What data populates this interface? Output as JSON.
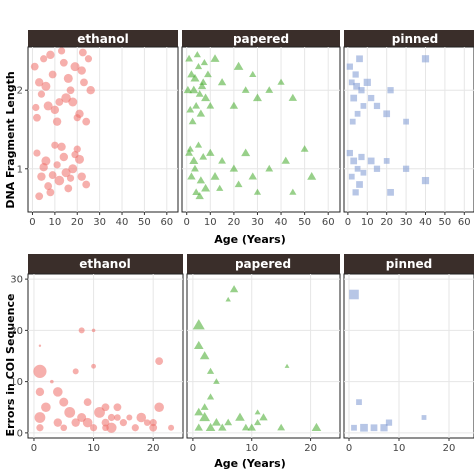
{
  "colors": {
    "strip_bg": "#3a2e2a",
    "panel_bg": "#ffffff",
    "panel_border": "#222222",
    "grid_major": "#e6e6e6",
    "ethanol": "#ee6e68",
    "papered": "#44a92a",
    "pinned": "#7b97d2"
  },
  "chart_data": [
    {
      "type": "scatter",
      "ylabel": "DNA Fragment Length",
      "xlabel": "Age (Years)",
      "facets": [
        "ethanol",
        "papered",
        "pinned"
      ],
      "facet_xlim": [
        [
          -2,
          65
        ],
        [
          -2,
          65
        ],
        [
          -2,
          65
        ]
      ],
      "facet_xticks": [
        [
          0,
          10,
          20,
          30,
          40,
          50,
          60
        ],
        [
          0,
          10,
          20,
          30,
          40,
          50,
          60
        ],
        [
          0,
          10,
          20,
          30,
          40,
          50,
          60
        ]
      ],
      "ylim": [
        0.45,
        2.55
      ],
      "yticks": [
        1,
        2
      ],
      "grid": true,
      "series": [
        {
          "facet": 0,
          "marker": "circle",
          "points": [
            [
              1,
              2.3,
              1.3
            ],
            [
              3,
              2.1,
              1.4
            ],
            [
              5,
              2.4,
              1.2
            ],
            [
              7,
              1.8,
              1.5
            ],
            [
              9,
              2.2,
              1.3
            ],
            [
              11,
              1.6,
              1.4
            ],
            [
              13,
              2.5,
              1.2
            ],
            [
              15,
              1.9,
              1.6
            ],
            [
              17,
              2.0,
              1.3
            ],
            [
              19,
              2.3,
              1.5
            ],
            [
              21,
              1.7,
              1.4
            ],
            [
              23,
              2.1,
              1.3
            ],
            [
              25,
              2.4,
              1.2
            ],
            [
              2,
              1.65,
              1.3
            ],
            [
              6,
              2.05,
              1.5
            ],
            [
              10,
              1.75,
              1.4
            ],
            [
              14,
              2.35,
              1.3
            ],
            [
              18,
              1.85,
              1.5
            ],
            [
              22,
              2.25,
              1.4
            ],
            [
              24,
              1.6,
              1.3
            ],
            [
              4,
              1.95,
              1.2
            ],
            [
              8,
              2.45,
              1.4
            ],
            [
              12,
              1.85,
              1.3
            ],
            [
              16,
              2.15,
              1.5
            ],
            [
              20,
              1.65,
              1.2
            ],
            [
              26,
              2.0,
              1.4
            ],
            [
              1.5,
              1.78,
              1.2
            ],
            [
              22.5,
              2.48,
              1.3
            ],
            [
              2,
              1.2,
              1.2
            ],
            [
              4,
              0.9,
              1.4
            ],
            [
              6,
              1.1,
              1.5
            ],
            [
              8,
              0.7,
              1.3
            ],
            [
              10,
              1.3,
              1.2
            ],
            [
              12,
              0.85,
              1.6
            ],
            [
              14,
              1.15,
              1.4
            ],
            [
              16,
              0.75,
              1.3
            ],
            [
              18,
              1.0,
              1.5
            ],
            [
              20,
              1.25,
              1.2
            ],
            [
              22,
              0.9,
              1.4
            ],
            [
              24,
              0.8,
              1.3
            ],
            [
              11,
              1.05,
              1.2
            ],
            [
              15,
              0.95,
              1.5
            ],
            [
              7,
              0.78,
              1.3
            ],
            [
              19,
              1.18,
              1.2
            ],
            [
              13,
              1.28,
              1.4
            ],
            [
              9,
              0.92,
              1.3
            ],
            [
              17,
              0.88,
              1.2
            ],
            [
              21,
              1.12,
              1.5
            ],
            [
              3,
              0.65,
              1.3
            ],
            [
              5,
              1.02,
              1.4
            ]
          ]
        },
        {
          "facet": 1,
          "marker": "triangle",
          "points": [
            [
              1,
              2.4,
              1.3
            ],
            [
              2,
              2.2,
              1.4
            ],
            [
              3,
              2.0,
              1.5
            ],
            [
              4,
              1.8,
              1.3
            ],
            [
              5,
              2.3,
              1.2
            ],
            [
              6,
              1.7,
              1.4
            ],
            [
              7,
              2.1,
              1.3
            ],
            [
              8,
              1.9,
              1.5
            ],
            [
              2.5,
              1.6,
              1.3
            ],
            [
              4.5,
              2.45,
              1.2
            ],
            [
              6.5,
              2.05,
              1.4
            ],
            [
              1.5,
              1.75,
              1.3
            ],
            [
              3.5,
              2.15,
              1.5
            ],
            [
              5.5,
              1.95,
              1.3
            ],
            [
              7.5,
              2.35,
              1.2
            ],
            [
              0.5,
              2.0,
              1.4
            ],
            [
              9,
              2.2,
              1.3
            ],
            [
              12,
              2.4,
              1.5
            ],
            [
              15,
              2.1,
              1.4
            ],
            [
              10,
              1.8,
              1.3
            ],
            [
              22,
              2.3,
              1.6
            ],
            [
              20,
              1.8,
              1.4
            ],
            [
              25,
              2.0,
              1.3
            ],
            [
              28,
              2.2,
              1.2
            ],
            [
              30,
              1.9,
              1.5
            ],
            [
              35,
              2.0,
              1.3
            ],
            [
              40,
              2.1,
              1.2
            ],
            [
              45,
              1.9,
              1.4
            ],
            [
              1,
              1.2,
              1.3
            ],
            [
              2,
              0.9,
              1.4
            ],
            [
              3,
              1.1,
              1.5
            ],
            [
              4,
              0.7,
              1.3
            ],
            [
              5,
              1.3,
              1.2
            ],
            [
              6,
              0.85,
              1.4
            ],
            [
              7,
              1.15,
              1.3
            ],
            [
              8,
              0.75,
              1.5
            ],
            [
              3.5,
              1.0,
              1.3
            ],
            [
              5.5,
              0.65,
              1.4
            ],
            [
              1.5,
              1.25,
              1.2
            ],
            [
              10,
              1.2,
              1.4
            ],
            [
              12,
              0.9,
              1.5
            ],
            [
              15,
              1.1,
              1.3
            ],
            [
              14,
              0.75,
              1.2
            ],
            [
              20,
              1.0,
              1.4
            ],
            [
              22,
              0.8,
              1.3
            ],
            [
              25,
              1.2,
              1.5
            ],
            [
              28,
              0.9,
              1.4
            ],
            [
              30,
              0.7,
              1.2
            ],
            [
              35,
              1.0,
              1.3
            ],
            [
              42,
              1.1,
              1.4
            ],
            [
              45,
              0.7,
              1.2
            ],
            [
              50,
              1.25,
              1.3
            ],
            [
              53,
              0.9,
              1.5
            ]
          ]
        },
        {
          "facet": 2,
          "marker": "square",
          "points": [
            [
              1,
              2.3,
              1.3
            ],
            [
              2,
              2.1,
              1.2
            ],
            [
              3,
              1.9,
              1.4
            ],
            [
              4,
              2.2,
              1.3
            ],
            [
              5,
              1.7,
              1.2
            ],
            [
              6,
              2.4,
              1.4
            ],
            [
              7,
              2.0,
              1.3
            ],
            [
              8,
              1.8,
              1.2
            ],
            [
              10,
              2.1,
              1.5
            ],
            [
              12,
              1.9,
              1.3
            ],
            [
              2.5,
              1.6,
              1.2
            ],
            [
              4.5,
              2.05,
              1.4
            ],
            [
              15,
              1.8,
              1.3
            ],
            [
              20,
              1.7,
              1.4
            ],
            [
              22,
              2.0,
              1.3
            ],
            [
              30,
              1.6,
              1.2
            ],
            [
              40,
              2.4,
              1.5
            ],
            [
              1,
              1.2,
              1.3
            ],
            [
              2,
              0.9,
              1.2
            ],
            [
              3,
              1.1,
              1.4
            ],
            [
              4,
              0.7,
              1.3
            ],
            [
              5,
              1.0,
              1.2
            ],
            [
              6,
              0.8,
              1.4
            ],
            [
              7,
              1.15,
              1.3
            ],
            [
              8,
              0.95,
              1.2
            ],
            [
              12,
              1.1,
              1.4
            ],
            [
              15,
              1.0,
              1.3
            ],
            [
              20,
              1.1,
              1.2
            ],
            [
              22,
              0.7,
              1.4
            ],
            [
              30,
              1.0,
              1.3
            ],
            [
              40,
              0.85,
              1.5
            ]
          ]
        }
      ]
    },
    {
      "type": "scatter",
      "ylabel": "Errors in COI Sequence",
      "xlabel": "Age (Years)",
      "facets": [
        "ethanol",
        "papered",
        "pinned"
      ],
      "facet_xlim": [
        [
          -1,
          25
        ],
        [
          -1,
          25
        ],
        [
          -1,
          25
        ]
      ],
      "facet_xticks": [
        [
          0,
          10,
          20
        ],
        [
          0,
          10,
          20
        ],
        [
          0,
          10,
          20
        ]
      ],
      "ylim": [
        -1,
        31
      ],
      "yticks": [
        0,
        10,
        20,
        30
      ],
      "grid": true,
      "series": [
        {
          "facet": 0,
          "marker": "circle",
          "points": [
            [
              1,
              17,
              0.4
            ],
            [
              1,
              12,
              2.2
            ],
            [
              1,
              8,
              1.4
            ],
            [
              1,
              3,
              1.8
            ],
            [
              1,
              1,
              1.2
            ],
            [
              2,
              5,
              1.6
            ],
            [
              3,
              10,
              0.6
            ],
            [
              4,
              8,
              1.6
            ],
            [
              4,
              2,
              1.4
            ],
            [
              5,
              6,
              1.5
            ],
            [
              5,
              1,
              1.1
            ],
            [
              6,
              4,
              1.8
            ],
            [
              7,
              2,
              1.4
            ],
            [
              7,
              12,
              1.0
            ],
            [
              8,
              20,
              1.0
            ],
            [
              8,
              3,
              1.5
            ],
            [
              9,
              2,
              1.6
            ],
            [
              9,
              6,
              1.3
            ],
            [
              10,
              13,
              0.8
            ],
            [
              10,
              20,
              0.6
            ],
            [
              11,
              4,
              1.8
            ],
            [
              12,
              2,
              1.3
            ],
            [
              12,
              5,
              1.3
            ],
            [
              13,
              1,
              1.7
            ],
            [
              14,
              3,
              1.1
            ],
            [
              14,
              5,
              1.3
            ],
            [
              15,
              2,
              1.2
            ],
            [
              16,
              3,
              1.0
            ],
            [
              17,
              1,
              1.2
            ],
            [
              18,
              3,
              1.6
            ],
            [
              19,
              2,
              1.1
            ],
            [
              20,
              1,
              1.3
            ],
            [
              21,
              14,
              1.3
            ],
            [
              21,
              5,
              1.6
            ],
            [
              20,
              2,
              1.2
            ],
            [
              10,
              1,
              1.2
            ],
            [
              12,
              1,
              1.1
            ],
            [
              13,
              3,
              1.2
            ],
            [
              23,
              1,
              1.0
            ]
          ]
        },
        {
          "facet": 1,
          "marker": "triangle",
          "points": [
            [
              1,
              21,
              2.0
            ],
            [
              1,
              1,
              1.4
            ],
            [
              1,
              4,
              1.5
            ],
            [
              2,
              3,
              1.8
            ],
            [
              2,
              15,
              1.6
            ],
            [
              1,
              17,
              1.6
            ],
            [
              3,
              12,
              1.2
            ],
            [
              3,
              1,
              1.6
            ],
            [
              4,
              2,
              1.5
            ],
            [
              5,
              1,
              1.4
            ],
            [
              6,
              26,
              0.9
            ],
            [
              7,
              28,
              1.4
            ],
            [
              8,
              3,
              1.6
            ],
            [
              9,
              1,
              1.3
            ],
            [
              10,
              1,
              1.4
            ],
            [
              11,
              2,
              1.2
            ],
            [
              12,
              3,
              1.4
            ],
            [
              15,
              1,
              1.3
            ],
            [
              16,
              13,
              0.8
            ],
            [
              21,
              1,
              1.6
            ],
            [
              2,
              5,
              1.3
            ],
            [
              4,
              10,
              1.1
            ],
            [
              3,
              7,
              1.2
            ],
            [
              6,
              2,
              1.3
            ],
            [
              11,
              4,
              1.0
            ]
          ]
        },
        {
          "facet": 2,
          "marker": "square",
          "points": [
            [
              1,
              27,
              2.0
            ],
            [
              2,
              6,
              1.2
            ],
            [
              3,
              1,
              1.6
            ],
            [
              5,
              1,
              1.4
            ],
            [
              7,
              1,
              1.5
            ],
            [
              1,
              1,
              1.2
            ],
            [
              15,
              3,
              1.0
            ],
            [
              8,
              2,
              1.3
            ]
          ]
        }
      ]
    }
  ]
}
